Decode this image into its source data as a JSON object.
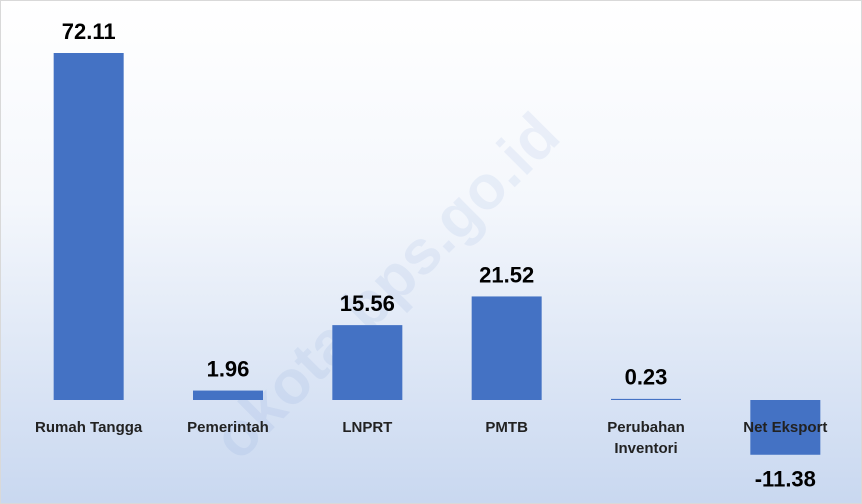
{
  "chart_data": {
    "type": "bar",
    "watermark": "okota.bps.go.id",
    "categories": [
      "Rumah Tangga",
      "Pemerintah",
      "LNPRT",
      "PMTB",
      "Perubahan Inventori",
      "Net Eksport"
    ],
    "values": [
      72.11,
      1.96,
      15.56,
      21.52,
      0.23,
      -11.38
    ],
    "color": "#4472c4"
  }
}
